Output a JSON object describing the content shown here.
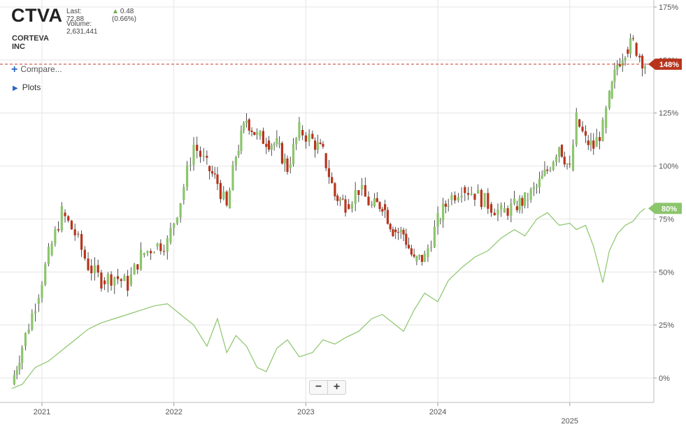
{
  "header": {
    "ticker": "CTVA",
    "company": "CORTEVA INC",
    "last": "Last: 72.88",
    "change": "0.48 (0.66%)",
    "volume": "Volume: 2,631,441"
  },
  "controls": {
    "compare_label": "Compare...",
    "plots_label": "Plots",
    "zoom_out_label": "−",
    "zoom_in_label": "+"
  },
  "colors": {
    "up_candle": "#8cc56c",
    "down_candle": "#b8341c",
    "compare_line": "#8cc56c",
    "grid": "#e4e4e4",
    "last_line": "#c0392b"
  },
  "chart_data": {
    "type": "line",
    "y_axis": {
      "ylim": [
        -5,
        175
      ],
      "ticks": [
        "175%",
        "150%",
        "125%",
        "100%",
        "75%",
        "50%",
        "25%",
        "0%"
      ],
      "tick_values": [
        175,
        150,
        125,
        100,
        75,
        50,
        25,
        0
      ]
    },
    "x_axis": {
      "ticks": [
        "2021",
        "2022",
        "2023",
        "2024",
        "2025"
      ],
      "tick_values": [
        2021,
        2022,
        2023,
        2024,
        2025
      ]
    },
    "grid": true,
    "badges": [
      {
        "series": "CTVA",
        "value": 148,
        "label": "148%",
        "color": "#b8341c"
      },
      {
        "series": "comparison",
        "value": 80,
        "label": "80%",
        "color": "#8cc56c"
      }
    ],
    "series": [
      {
        "id": "CTVA",
        "style": "candlestick",
        "x": [
          2020.77,
          2020.85,
          2020.95,
          2021.05,
          2021.15,
          2021.25,
          2021.35,
          2021.45,
          2021.55,
          2021.65,
          2021.75,
          2021.85,
          2021.95,
          2022.05,
          2022.15,
          2022.25,
          2022.33,
          2022.4,
          2022.47,
          2022.55,
          2022.63,
          2022.7,
          2022.78,
          2022.86,
          2022.95,
          2023.05,
          2023.13,
          2023.22,
          2023.3,
          2023.4,
          2023.5,
          2023.58,
          2023.66,
          2023.74,
          2023.82,
          2023.9,
          2024.0,
          2024.08,
          2024.18,
          2024.28,
          2024.38,
          2024.48,
          2024.58,
          2024.66,
          2024.75,
          2024.83,
          2024.92,
          2025.0,
          2025.05,
          2025.12,
          2025.18,
          2025.25,
          2025.3,
          2025.36,
          2025.42,
          2025.48,
          2025.53,
          2025.57
        ],
        "values": [
          -3,
          15,
          35,
          58,
          78,
          68,
          53,
          46,
          48,
          44,
          58,
          62,
          64,
          84,
          110,
          100,
          92,
          80,
          105,
          122,
          114,
          112,
          110,
          99,
          117,
          112,
          106,
          86,
          82,
          89,
          81,
          82,
          70,
          68,
          55,
          57,
          74,
          84,
          90,
          87,
          82,
          78,
          81,
          84,
          90,
          98,
          110,
          98,
          122,
          112,
          109,
          118,
          132,
          148,
          155,
          158,
          152,
          148
        ]
      },
      {
        "id": "comparison",
        "style": "line",
        "x": [
          2020.77,
          2020.85,
          2020.95,
          2021.05,
          2021.15,
          2021.25,
          2021.35,
          2021.45,
          2021.55,
          2021.65,
          2021.75,
          2021.85,
          2021.95,
          2022.05,
          2022.15,
          2022.25,
          2022.33,
          2022.4,
          2022.47,
          2022.55,
          2022.63,
          2022.7,
          2022.78,
          2022.86,
          2022.95,
          2023.05,
          2023.13,
          2023.22,
          2023.3,
          2023.4,
          2023.5,
          2023.58,
          2023.66,
          2023.74,
          2023.82,
          2023.9,
          2024.0,
          2024.08,
          2024.18,
          2024.28,
          2024.38,
          2024.48,
          2024.58,
          2024.66,
          2024.75,
          2024.83,
          2024.92,
          2025.0,
          2025.05,
          2025.12,
          2025.18,
          2025.25,
          2025.3,
          2025.36,
          2025.42,
          2025.48,
          2025.53,
          2025.57
        ],
        "values": [
          -5,
          -3,
          5,
          8,
          13,
          18,
          23,
          26,
          28,
          30,
          32,
          34,
          35,
          30,
          25,
          15,
          28,
          12,
          20,
          15,
          5,
          3,
          14,
          18,
          10,
          12,
          18,
          16,
          19,
          22,
          28,
          30,
          26,
          22,
          32,
          40,
          36,
          46,
          52,
          57,
          60,
          66,
          70,
          67,
          75,
          78,
          72,
          73,
          70,
          72,
          62,
          45,
          60,
          68,
          72,
          74,
          78,
          80
        ]
      }
    ]
  }
}
